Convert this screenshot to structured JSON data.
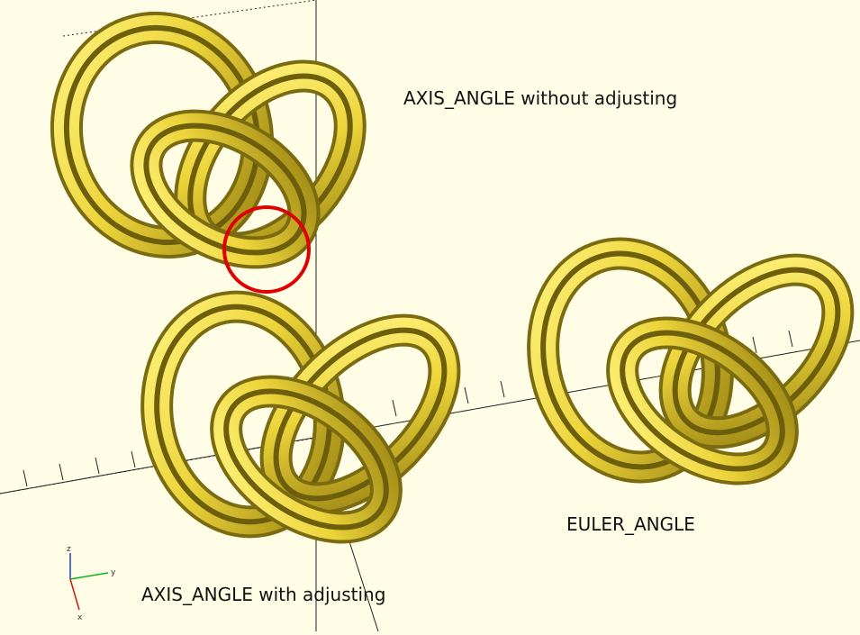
{
  "labels": {
    "axis_angle_without": "AXIS_ANGLE without adjusting",
    "euler_angle": "EULER_ANGLE",
    "axis_angle_with": "AXIS_ANGLE with adjusting"
  },
  "axis_indicator": {
    "z": "z",
    "y": "y",
    "x": "x"
  },
  "colors": {
    "background": "#fffde6",
    "knot_fill": "#e8d232",
    "knot_light": "#fff17a",
    "knot_shadow": "#7a6a10",
    "highlight_circle": "#e00000",
    "axis_line": "#222222",
    "axis_x": "#d21414",
    "axis_y": "#14b414",
    "axis_z": "#1e3cd2"
  },
  "icons": [
    "trefoil-knot-icon",
    "highlight-circle-icon",
    "axis-indicator-icon"
  ]
}
